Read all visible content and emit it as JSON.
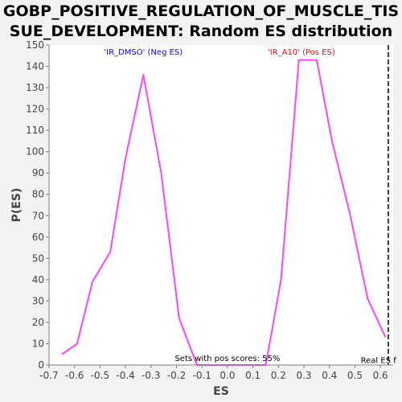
{
  "chart_data": {
    "type": "line",
    "title_lines": [
      "GOBP_POSITIVE_REGULATION_OF_MUSCLE_TIS",
      "SUE_DEVELOPMENT: Random ES distribution"
    ],
    "xlabel": "ES",
    "ylabel": "P(ES)",
    "xlim": [
      -0.7,
      0.65
    ],
    "ylim": [
      0,
      150
    ],
    "x_ticks": [
      -0.7,
      -0.6,
      -0.5,
      -0.4,
      -0.3,
      -0.2,
      -0.1,
      0.0,
      0.1,
      0.2,
      0.3,
      0.4,
      0.5,
      0.6
    ],
    "x_tick_labels": [
      "-0.7",
      "-0.6",
      "-0.5",
      "-0.4",
      "-0.3",
      "-0.2",
      "-0.1",
      "0.0",
      "0.1",
      "0.2",
      "0.3",
      "0.4",
      "0.5",
      "0.6"
    ],
    "y_ticks": [
      0,
      10,
      20,
      30,
      40,
      50,
      60,
      70,
      80,
      90,
      100,
      110,
      120,
      130,
      140,
      150
    ],
    "y_tick_labels": [
      "0",
      "10",
      "20",
      "30",
      "40",
      "50",
      "60",
      "70",
      "80",
      "90",
      "100",
      "110",
      "120",
      "130",
      "140",
      "150"
    ],
    "grid": false,
    "series_color": "#ff44ff",
    "series": [
      {
        "x": [
          -0.65,
          -0.59,
          -0.53,
          -0.46,
          -0.4,
          -0.33,
          -0.26,
          -0.19,
          -0.12,
          -0.06,
          0.01,
          0.08,
          0.15,
          0.21,
          0.28,
          0.35,
          0.41,
          0.48,
          0.55,
          0.62
        ],
        "y": [
          5,
          10,
          39,
          53,
          97,
          136,
          90,
          22,
          0,
          0,
          0,
          0,
          0,
          40,
          143,
          143,
          105,
          71,
          31,
          13
        ]
      }
    ],
    "annotations": [
      {
        "text": "'IR_DMSO' (Neg ES)",
        "x": -0.33,
        "y": 147,
        "color": "#0000ff"
      },
      {
        "text": "'IR_A10' (Pos ES)",
        "x": 0.29,
        "y": 147,
        "color": "#ff0000"
      },
      {
        "text": "Sets with pos scores: 55%",
        "x": 0.0,
        "y": 1.5,
        "color": "#000000"
      },
      {
        "text": "Real ES f",
        "x": 0.63,
        "y": 0.5,
        "color": "#000000"
      }
    ],
    "real_es_marker": {
      "x": 0.65,
      "style": "dashed",
      "color": "#000000"
    }
  }
}
